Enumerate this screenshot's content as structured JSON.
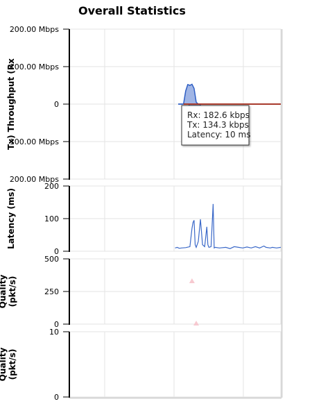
{
  "title": "Overall Statistics",
  "chart_data": [
    {
      "type": "area",
      "ylabel": "Tx) Throughput (Rx",
      "y_tick_labels": [
        "200.00 Mbps",
        "100.00 Mbps",
        "0",
        "100.00 Mbps",
        "200.00 Mbps"
      ],
      "ylim": [
        -200,
        200
      ],
      "y_unit": "Mbps",
      "xlim": [
        0,
        100
      ],
      "rx": {
        "color": "#2f5fc4",
        "points": [
          [
            51.5,
            0
          ],
          [
            54,
            0
          ],
          [
            55,
            35
          ],
          [
            56,
            52
          ],
          [
            57,
            50
          ],
          [
            58,
            53
          ],
          [
            59,
            42
          ],
          [
            60,
            5
          ],
          [
            61,
            0
          ],
          [
            100,
            0
          ]
        ]
      },
      "tx": {
        "color": "#2f5fc4",
        "points": [
          [
            51.5,
            0
          ],
          [
            56.5,
            0
          ],
          [
            57,
            -10
          ],
          [
            58,
            -45
          ],
          [
            59,
            -72
          ],
          [
            60,
            -72
          ],
          [
            61,
            -30
          ],
          [
            62,
            0
          ],
          [
            100,
            0
          ]
        ]
      },
      "reference_line": {
        "color": "#a83a2c",
        "x_start": 54,
        "x_end": 100,
        "y": 0
      },
      "tooltip": {
        "rx": "Rx: 182.6 kbps",
        "tx": "Tx: 134.3 kbps",
        "latency": "Latency: 10 ms"
      }
    },
    {
      "type": "line",
      "ylabel": "Latency (ms)",
      "y_ticks": [
        0,
        100,
        200
      ],
      "ylim": [
        0,
        200
      ],
      "xlim": [
        0,
        100
      ],
      "series": [
        {
          "color": "#3a68c8",
          "points": [
            [
              50,
              10
            ],
            [
              51,
              12
            ],
            [
              52,
              9
            ],
            [
              53,
              10
            ],
            [
              55,
              11
            ],
            [
              57,
              14
            ],
            [
              58,
              70
            ],
            [
              58.5,
              88
            ],
            [
              59,
              95
            ],
            [
              59.5,
              20
            ],
            [
              60,
              12
            ],
            [
              61,
              30
            ],
            [
              62,
              98
            ],
            [
              63,
              20
            ],
            [
              64,
              14
            ],
            [
              65,
              75
            ],
            [
              65.5,
              20
            ],
            [
              66,
              12
            ],
            [
              67,
              14
            ],
            [
              68,
              145
            ],
            [
              68.5,
              10
            ],
            [
              69,
              12
            ],
            [
              71,
              10
            ],
            [
              74,
              12
            ],
            [
              76,
              8
            ],
            [
              78,
              14
            ],
            [
              80,
              12
            ],
            [
              82,
              10
            ],
            [
              84,
              13
            ],
            [
              86,
              10
            ],
            [
              88,
              14
            ],
            [
              90,
              10
            ],
            [
              92,
              16
            ],
            [
              93,
              12
            ],
            [
              95,
              10
            ],
            [
              96,
              12
            ],
            [
              98,
              10
            ],
            [
              100,
              12
            ]
          ]
        }
      ]
    },
    {
      "type": "scatter",
      "ylabel": "Quality\n(pkt/s)",
      "y_ticks": [
        0,
        250,
        500
      ],
      "ylim": [
        0,
        500
      ],
      "xlim": [
        0,
        100
      ],
      "series": [
        {
          "color": "#f7c9d0",
          "marker": "triangle",
          "points": [
            [
              58,
              330
            ],
            [
              60,
              5
            ]
          ]
        }
      ]
    },
    {
      "type": "scatter",
      "ylabel": "Quality\n(pkt/s)",
      "y_ticks": [
        0,
        10
      ],
      "ylim": [
        0,
        10
      ],
      "xlim": [
        0,
        100
      ],
      "series": []
    }
  ]
}
